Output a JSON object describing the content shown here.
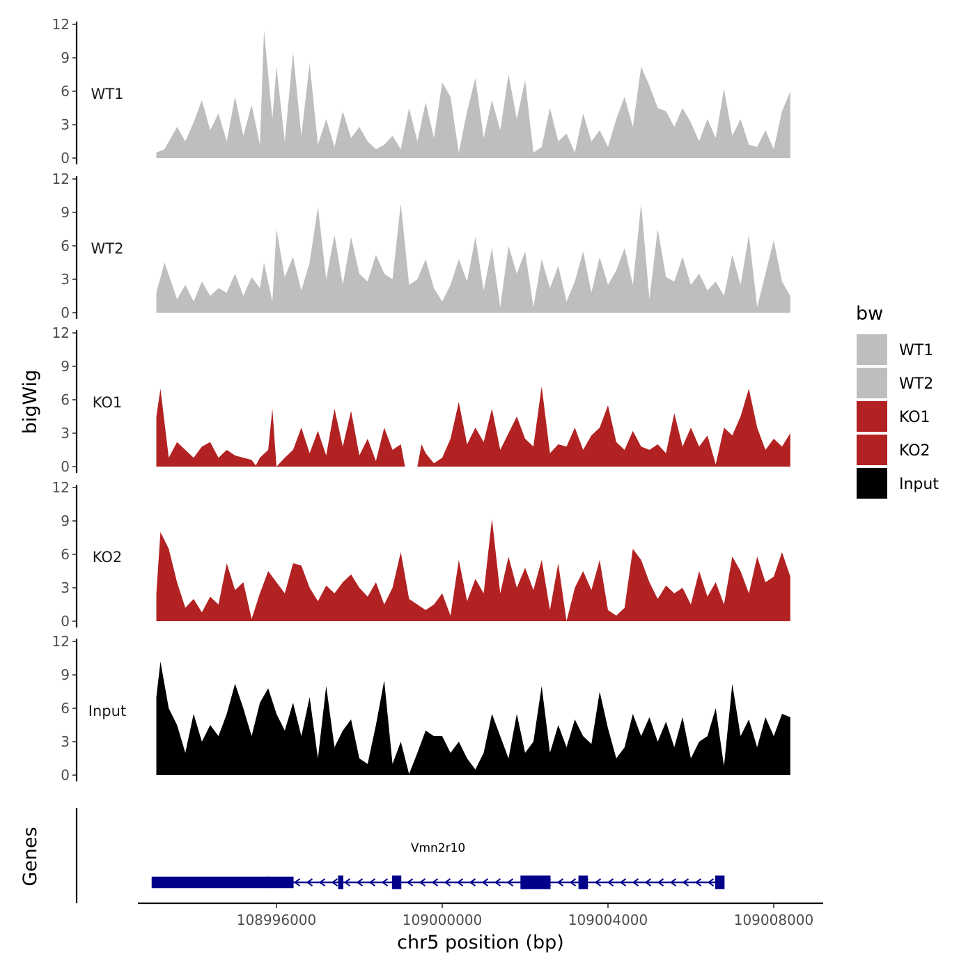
{
  "chart_data": {
    "type": "area",
    "ylabel": "bigWig",
    "xlabel": "chr5 position (bp)",
    "genes_label": "Genes",
    "ylim": [
      0,
      12
    ],
    "yticks": [
      0,
      3,
      6,
      9,
      12
    ],
    "xlim": [
      108992000,
      109009000
    ],
    "xticks": [
      108996000,
      109000000,
      109004000,
      109008000
    ],
    "xtick_labels": [
      "108996000",
      "109000000",
      "109004000",
      "109008000"
    ],
    "legend": {
      "title": "bw",
      "entries": [
        {
          "label": "WT1",
          "color": "#bebebe"
        },
        {
          "label": "WT2",
          "color": "#bebebe"
        },
        {
          "label": "KO1",
          "color": "#b22222"
        },
        {
          "label": "KO2",
          "color": "#b22222"
        },
        {
          "label": "Input",
          "color": "#000000"
        }
      ]
    },
    "series": [
      {
        "name": "WT1",
        "color": "#bebebe",
        "x": [
          108993100,
          108993300,
          108993600,
          108993800,
          108994000,
          108994200,
          108994400,
          108994600,
          108994800,
          108995000,
          108995200,
          108995400,
          108995600,
          108995700,
          108995900,
          108996000,
          108996200,
          108996400,
          108996600,
          108996800,
          108997000,
          108997200,
          108997400,
          108997600,
          108997800,
          108998000,
          108998200,
          108998400,
          108998600,
          108998800,
          108999000,
          108999200,
          108999400,
          108999600,
          108999800,
          109000000,
          109000200,
          109000400,
          109000600,
          109000800,
          109001000,
          109001200,
          109001400,
          109001600,
          109001800,
          109002000,
          109002200,
          109002400,
          109002600,
          109002800,
          109003000,
          109003200,
          109003400,
          109003600,
          109003800,
          109004000,
          109004200,
          109004400,
          109004600,
          109004800,
          109005000,
          109005200,
          109005400,
          109005600,
          109005800,
          109006000,
          109006200,
          109006400,
          109006600,
          109006800,
          109007000,
          109007200,
          109007400,
          109007600,
          109007800,
          109008000,
          109008200,
          109008400
        ],
        "values": [
          0.5,
          0.8,
          2.8,
          1.5,
          3.2,
          5.2,
          2.5,
          4.0,
          1.5,
          5.5,
          2.0,
          4.8,
          1.2,
          11.5,
          3.5,
          8.2,
          1.5,
          9.5,
          2.0,
          8.5,
          1.2,
          3.5,
          1.0,
          4.2,
          1.8,
          2.8,
          1.5,
          0.8,
          1.2,
          2.0,
          0.8,
          4.5,
          1.5,
          5.0,
          1.8,
          6.8,
          5.5,
          0.5,
          4.2,
          7.2,
          1.8,
          5.2,
          2.5,
          7.5,
          3.5,
          7.0,
          0.5,
          1.0,
          4.5,
          1.5,
          2.2,
          0.5,
          4.0,
          1.5,
          2.5,
          1.0,
          3.5,
          5.5,
          2.8,
          8.2,
          6.5,
          4.5,
          4.2,
          2.8,
          4.5,
          3.2,
          1.5,
          3.5,
          1.8,
          6.2,
          2.0,
          3.5,
          1.2,
          1.0,
          2.5,
          0.8,
          4.2,
          6.0
        ]
      },
      {
        "name": "WT2",
        "color": "#bebebe",
        "x": [
          108993100,
          108993300,
          108993600,
          108993800,
          108994000,
          108994200,
          108994400,
          108994600,
          108994800,
          108995000,
          108995200,
          108995400,
          108995600,
          108995700,
          108995900,
          108996000,
          108996200,
          108996400,
          108996600,
          108996800,
          108997000,
          108997200,
          108997400,
          108997600,
          108997800,
          108998000,
          108998200,
          108998400,
          108998600,
          108998800,
          108999000,
          108999200,
          108999400,
          108999600,
          108999800,
          109000000,
          109000200,
          109000400,
          109000600,
          109000800,
          109001000,
          109001200,
          109001400,
          109001600,
          109001800,
          109002000,
          109002200,
          109002400,
          109002600,
          109002800,
          109003000,
          109003200,
          109003400,
          109003600,
          109003800,
          109004000,
          109004200,
          109004400,
          109004600,
          109004800,
          109005000,
          109005200,
          109005400,
          109005600,
          109005800,
          109006000,
          109006200,
          109006400,
          109006600,
          109006800,
          109007000,
          109007200,
          109007400,
          109007600,
          109007800,
          109008000,
          109008200,
          109008400
        ],
        "values": [
          1.8,
          4.5,
          1.2,
          2.5,
          1.0,
          2.8,
          1.5,
          2.2,
          1.8,
          3.5,
          1.5,
          3.2,
          2.2,
          4.5,
          1.0,
          7.5,
          3.2,
          5.0,
          2.0,
          4.5,
          9.5,
          3.0,
          7.0,
          2.5,
          6.8,
          3.5,
          2.8,
          5.2,
          3.5,
          3.0,
          9.8,
          2.5,
          3.0,
          4.8,
          2.2,
          1.0,
          2.5,
          4.8,
          2.8,
          6.8,
          2.0,
          5.8,
          0.5,
          6.0,
          3.5,
          5.5,
          0.5,
          4.8,
          2.2,
          4.2,
          1.0,
          2.8,
          5.5,
          1.8,
          5.0,
          2.5,
          3.8,
          5.8,
          2.5,
          9.8,
          1.2,
          7.5,
          3.2,
          2.8,
          5.0,
          2.5,
          3.5,
          2.0,
          2.8,
          1.5,
          5.2,
          2.5,
          7.0,
          0.5,
          3.5,
          6.5,
          2.8,
          1.5
        ]
      },
      {
        "name": "KO1",
        "color": "#b22222",
        "x": [
          108993100,
          108993200,
          108993400,
          108993600,
          108993800,
          108994000,
          108994200,
          108994400,
          108994600,
          108994800,
          108995000,
          108995200,
          108995400,
          108995500,
          108995600,
          108995800,
          108995900,
          108996000,
          108996200,
          108996400,
          108996600,
          108996800,
          108997000,
          108997200,
          108997400,
          108997600,
          108997800,
          108998000,
          108998200,
          108998400,
          108998600,
          108998800,
          108999000,
          108999100,
          108999200,
          108999400,
          108999500,
          108999600,
          108999800,
          109000000,
          109000200,
          109000400,
          109000600,
          109000800,
          109001000,
          109001200,
          109001400,
          109001600,
          109001800,
          109002000,
          109002200,
          109002400,
          109002600,
          109002800,
          109003000,
          109003200,
          109003400,
          109003600,
          109003800,
          109004000,
          109004200,
          109004400,
          109004600,
          109004800,
          109005000,
          109005200,
          109005400,
          109005600,
          109005800,
          109006000,
          109006200,
          109006400,
          109006600,
          109006800,
          109007000,
          109007200,
          109007400,
          109007600,
          109007800,
          109008000,
          109008200,
          109008400
        ],
        "values": [
          4.5,
          7.0,
          0.8,
          2.2,
          1.5,
          0.8,
          1.8,
          2.2,
          0.8,
          1.5,
          1.0,
          0.8,
          0.6,
          0.1,
          0.8,
          1.5,
          5.2,
          0.0,
          0.8,
          1.5,
          3.5,
          1.2,
          3.2,
          1.0,
          5.2,
          1.8,
          5.0,
          1.0,
          2.5,
          0.5,
          3.5,
          1.5,
          2.0,
          0.0,
          0.0,
          0.0,
          2.0,
          1.2,
          0.3,
          0.8,
          2.5,
          5.8,
          2.0,
          3.5,
          2.2,
          5.2,
          1.5,
          3.0,
          4.5,
          2.5,
          1.8,
          7.2,
          1.2,
          2.0,
          1.8,
          3.5,
          1.5,
          2.8,
          3.5,
          5.5,
          2.2,
          1.5,
          3.2,
          1.8,
          1.5,
          2.0,
          1.2,
          4.8,
          1.8,
          3.5,
          1.8,
          2.8,
          0.2,
          3.5,
          2.8,
          4.5,
          7.0,
          3.5,
          1.5,
          2.5,
          1.8,
          3.0
        ]
      },
      {
        "name": "KO2",
        "color": "#b22222",
        "x": [
          108993100,
          108993200,
          108993400,
          108993600,
          108993800,
          108994000,
          108994200,
          108994400,
          108994600,
          108994800,
          108995000,
          108995200,
          108995400,
          108995600,
          108995800,
          108996000,
          108996200,
          108996400,
          108996600,
          108996800,
          108997000,
          108997200,
          108997400,
          108997600,
          108997800,
          108998000,
          108998200,
          108998400,
          108998600,
          108998800,
          108999000,
          108999200,
          108999400,
          108999600,
          108999800,
          109000000,
          109000200,
          109000400,
          109000600,
          109000800,
          109001000,
          109001200,
          109001400,
          109001600,
          109001800,
          109002000,
          109002200,
          109002400,
          109002600,
          109002800,
          109003000,
          109003200,
          109003400,
          109003600,
          109003800,
          109004000,
          109004200,
          109004400,
          109004600,
          109004800,
          109005000,
          109005200,
          109005400,
          109005600,
          109005800,
          109006000,
          109006200,
          109006400,
          109006600,
          109006800,
          109007000,
          109007200,
          109007400,
          109007600,
          109007800,
          109008000,
          109008200,
          109008400
        ],
        "values": [
          2.5,
          8.0,
          6.5,
          3.5,
          1.2,
          2.0,
          0.8,
          2.2,
          1.5,
          5.2,
          2.8,
          3.5,
          0.2,
          2.5,
          4.5,
          3.5,
          2.5,
          5.2,
          5.0,
          3.0,
          1.8,
          3.2,
          2.5,
          3.5,
          4.2,
          3.0,
          2.2,
          3.5,
          1.5,
          3.0,
          6.2,
          2.0,
          1.5,
          1.0,
          1.5,
          2.5,
          0.5,
          5.5,
          1.8,
          3.8,
          2.5,
          9.2,
          2.5,
          5.8,
          3.0,
          4.8,
          2.8,
          5.5,
          1.0,
          5.2,
          0.0,
          3.0,
          4.5,
          2.8,
          5.5,
          1.0,
          0.5,
          1.2,
          6.5,
          5.5,
          3.5,
          2.0,
          3.2,
          2.5,
          3.0,
          1.5,
          4.5,
          2.2,
          3.5,
          1.5,
          5.8,
          4.5,
          2.5,
          5.8,
          3.5,
          4.0,
          6.2,
          4.0
        ]
      },
      {
        "name": "Input",
        "color": "#000000",
        "x": [
          108993100,
          108993200,
          108993400,
          108993600,
          108993800,
          108994000,
          108994200,
          108994400,
          108994600,
          108994800,
          108995000,
          108995200,
          108995400,
          108995600,
          108995800,
          108996000,
          108996200,
          108996400,
          108996600,
          108996800,
          108997000,
          108997200,
          108997400,
          108997600,
          108997800,
          108998000,
          108998200,
          108998400,
          108998600,
          108998800,
          108999000,
          108999200,
          108999400,
          108999600,
          108999800,
          109000000,
          109000200,
          109000400,
          109000600,
          109000800,
          109001000,
          109001200,
          109001400,
          109001600,
          109001800,
          109002000,
          109002200,
          109002400,
          109002600,
          109002800,
          109003000,
          109003200,
          109003400,
          109003600,
          109003800,
          109004000,
          109004200,
          109004400,
          109004600,
          109004800,
          109005000,
          109005200,
          109005400,
          109005600,
          109005800,
          109006000,
          109006200,
          109006400,
          109006600,
          109006800,
          109007000,
          109007200,
          109007400,
          109007600,
          109007800,
          109008000,
          109008200,
          109008400
        ],
        "values": [
          7.0,
          10.2,
          6.0,
          4.5,
          2.0,
          5.5,
          3.0,
          4.5,
          3.5,
          5.5,
          8.2,
          6.0,
          3.5,
          6.5,
          7.8,
          5.5,
          4.0,
          6.5,
          3.5,
          7.0,
          1.5,
          8.0,
          2.5,
          4.0,
          5.0,
          1.5,
          1.0,
          4.5,
          8.5,
          1.0,
          3.0,
          0.1,
          2.0,
          4.0,
          3.5,
          3.5,
          2.0,
          3.0,
          1.5,
          0.5,
          2.0,
          5.5,
          3.5,
          1.5,
          5.5,
          2.0,
          3.0,
          8.0,
          2.0,
          4.5,
          2.5,
          5.0,
          3.5,
          2.8,
          7.5,
          4.2,
          1.5,
          2.5,
          5.5,
          3.5,
          5.2,
          3.0,
          4.8,
          2.5,
          5.2,
          1.5,
          3.0,
          3.5,
          6.0,
          0.8,
          8.2,
          3.5,
          5.0,
          2.5,
          5.2,
          3.5,
          5.5,
          5.2
        ]
      }
    ],
    "genes": [
      {
        "name": "Vmn2r10",
        "strand": "-",
        "start": 108993000,
        "end": 109006800,
        "exons": [
          {
            "start": 108993000,
            "end": 108995800,
            "tall": false
          },
          {
            "start": 108995800,
            "end": 108996400,
            "tall": false
          },
          {
            "start": 108997500,
            "end": 108997600,
            "tall": true
          },
          {
            "start": 108998800,
            "end": 108999000,
            "tall": true
          },
          {
            "start": 109001900,
            "end": 109002600,
            "tall": true
          },
          {
            "start": 109003300,
            "end": 109003500,
            "tall": true
          },
          {
            "start": 109006600,
            "end": 109006800,
            "tall": true
          }
        ]
      }
    ]
  }
}
